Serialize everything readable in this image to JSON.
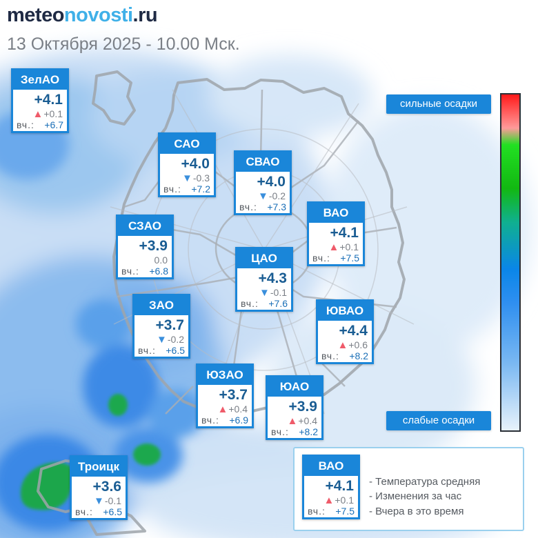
{
  "header": {
    "logo_part1": "meteo",
    "logo_part2": "novosti",
    "logo_part3": ".ru",
    "subtitle": "13 Октября 2025 - 10.00 Мск."
  },
  "districts": [
    {
      "name": "ЗелАО",
      "temp": "+4.1",
      "change": "+0.1",
      "trend": "up",
      "yesterday_label": "вч.:",
      "yesterday": "+6.7"
    },
    {
      "name": "САО",
      "temp": "+4.0",
      "change": "-0.3",
      "trend": "down",
      "yesterday_label": "вч.:",
      "yesterday": "+7.2"
    },
    {
      "name": "СВАО",
      "temp": "+4.0",
      "change": "-0.2",
      "trend": "down",
      "yesterday_label": "вч.:",
      "yesterday": "+7.3"
    },
    {
      "name": "ВАО",
      "temp": "+4.1",
      "change": "+0.1",
      "trend": "up",
      "yesterday_label": "вч.:",
      "yesterday": "+7.5"
    },
    {
      "name": "СЗАО",
      "temp": "+3.9",
      "change": "0.0",
      "trend": "none",
      "yesterday_label": "вч.:",
      "yesterday": "+6.8"
    },
    {
      "name": "ЦАО",
      "temp": "+4.3",
      "change": "-0.1",
      "trend": "down",
      "yesterday_label": "вч.:",
      "yesterday": "+7.6"
    },
    {
      "name": "ЗАО",
      "temp": "+3.7",
      "change": "-0.2",
      "trend": "down",
      "yesterday_label": "вч.:",
      "yesterday": "+6.5"
    },
    {
      "name": "ЮВАО",
      "temp": "+4.4",
      "change": "+0.6",
      "trend": "up",
      "yesterday_label": "вч.:",
      "yesterday": "+8.2"
    },
    {
      "name": "ЮЗАО",
      "temp": "+3.7",
      "change": "+0.4",
      "trend": "up",
      "yesterday_label": "вч.:",
      "yesterday": "+6.9"
    },
    {
      "name": "ЮАО",
      "temp": "+3.9",
      "change": "+0.4",
      "trend": "up",
      "yesterday_label": "вч.:",
      "yesterday": "+8.2"
    },
    {
      "name": "Троицк",
      "temp": "+3.6",
      "change": "-0.1",
      "trend": "down",
      "yesterday_label": "вч.:",
      "yesterday": "+6.5"
    }
  ],
  "scale": {
    "top_label": "сильные осадки",
    "bottom_label": "слабые осадки"
  },
  "legend": {
    "sample": {
      "name": "ВАО",
      "temp": "+4.1",
      "change": "+0.1",
      "trend": "up",
      "yesterday_label": "вч.:",
      "yesterday": "+7.5"
    },
    "line1": "- Температура средняя",
    "line2": "- Изменения за час",
    "line3": "- Вчера в это время"
  },
  "colors": {
    "card_blue": "#1a86d9",
    "trend_up": "#ef5b6a",
    "trend_down": "#3a8fdc"
  }
}
